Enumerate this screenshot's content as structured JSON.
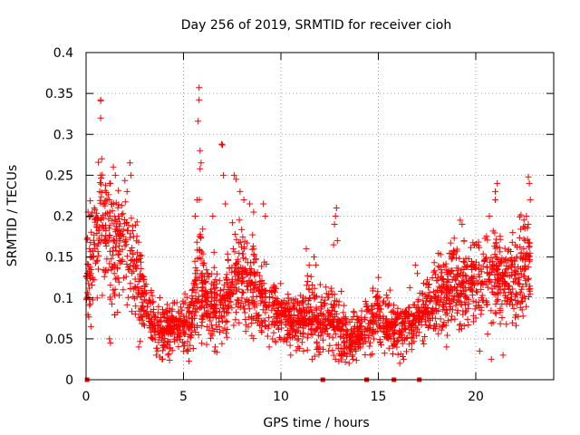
{
  "chart_data": {
    "type": "scatter",
    "title": "Day 256 of 2019, SRMTID for receiver cioh",
    "xlabel": "GPS time / hours",
    "ylabel": "SRMTID / TECUs",
    "xlim": [
      0,
      24
    ],
    "ylim": [
      0,
      0.4
    ],
    "x_ticks": [
      0,
      5,
      10,
      15,
      20
    ],
    "x_tick_labels": [
      "0",
      "5",
      "10",
      "15",
      "20"
    ],
    "y_ticks": [
      0,
      0.05,
      0.1,
      0.15,
      0.2,
      0.25,
      0.3,
      0.35,
      0.4
    ],
    "y_tick_labels": [
      "0",
      "0.05",
      "0.1",
      "0.15",
      "0.2",
      "0.25",
      "0.3",
      "0.35",
      "0.4"
    ],
    "grid": true,
    "marker": "+",
    "color": "#ff0000",
    "zero_markers_x": [
      0.05,
      12.15,
      14.4,
      15.8,
      17.1
    ],
    "series": [
      {
        "name": "SRMTID",
        "profile": [
          [
            0.0,
            0.13,
            0.04
          ],
          [
            0.5,
            0.16,
            0.05
          ],
          [
            0.8,
            0.19,
            0.05
          ],
          [
            1.2,
            0.17,
            0.05
          ],
          [
            1.6,
            0.16,
            0.05
          ],
          [
            2.0,
            0.18,
            0.05
          ],
          [
            2.5,
            0.14,
            0.04
          ],
          [
            3.0,
            0.1,
            0.03
          ],
          [
            3.5,
            0.065,
            0.02
          ],
          [
            4.0,
            0.06,
            0.02
          ],
          [
            4.5,
            0.065,
            0.02
          ],
          [
            5.0,
            0.065,
            0.02
          ],
          [
            5.5,
            0.08,
            0.03
          ],
          [
            5.8,
            0.14,
            0.05
          ],
          [
            6.2,
            0.09,
            0.03
          ],
          [
            7.0,
            0.09,
            0.03
          ],
          [
            7.5,
            0.12,
            0.04
          ],
          [
            8.0,
            0.13,
            0.04
          ],
          [
            8.5,
            0.12,
            0.04
          ],
          [
            9.0,
            0.1,
            0.03
          ],
          [
            9.5,
            0.09,
            0.025
          ],
          [
            10.0,
            0.075,
            0.02
          ],
          [
            11.0,
            0.07,
            0.02
          ],
          [
            11.5,
            0.08,
            0.025
          ],
          [
            12.0,
            0.07,
            0.025
          ],
          [
            12.5,
            0.08,
            0.025
          ],
          [
            13.0,
            0.06,
            0.025
          ],
          [
            13.5,
            0.05,
            0.02
          ],
          [
            14.0,
            0.055,
            0.02
          ],
          [
            14.5,
            0.07,
            0.02
          ],
          [
            15.0,
            0.08,
            0.025
          ],
          [
            15.5,
            0.07,
            0.02
          ],
          [
            16.0,
            0.055,
            0.02
          ],
          [
            16.5,
            0.07,
            0.02
          ],
          [
            17.0,
            0.075,
            0.02
          ],
          [
            17.5,
            0.09,
            0.025
          ],
          [
            18.0,
            0.1,
            0.03
          ],
          [
            18.5,
            0.11,
            0.03
          ],
          [
            19.0,
            0.12,
            0.035
          ],
          [
            19.5,
            0.11,
            0.03
          ],
          [
            20.0,
            0.12,
            0.035
          ],
          [
            20.5,
            0.13,
            0.04
          ],
          [
            21.0,
            0.13,
            0.04
          ],
          [
            21.5,
            0.12,
            0.035
          ],
          [
            22.0,
            0.12,
            0.04
          ],
          [
            22.5,
            0.14,
            0.04
          ],
          [
            22.8,
            0.14,
            0.04
          ]
        ],
        "spikes": [
          [
            0.75,
            0.342
          ],
          [
            0.75,
            0.341
          ],
          [
            0.75,
            0.32
          ],
          [
            0.8,
            0.27
          ],
          [
            0.75,
            0.25
          ],
          [
            0.7,
            0.23
          ],
          [
            1.4,
            0.26
          ],
          [
            1.5,
            0.25
          ],
          [
            1.2,
            0.22
          ],
          [
            2.25,
            0.265
          ],
          [
            2.3,
            0.25
          ],
          [
            2.1,
            0.23
          ],
          [
            5.8,
            0.357
          ],
          [
            5.8,
            0.342
          ],
          [
            5.75,
            0.316
          ],
          [
            5.85,
            0.28
          ],
          [
            5.9,
            0.265
          ],
          [
            5.85,
            0.258
          ],
          [
            5.7,
            0.22
          ],
          [
            5.6,
            0.2
          ],
          [
            6.95,
            0.288
          ],
          [
            7.0,
            0.287
          ],
          [
            7.05,
            0.25
          ],
          [
            7.15,
            0.215
          ],
          [
            6.5,
            0.2
          ],
          [
            7.6,
            0.25
          ],
          [
            7.7,
            0.245
          ],
          [
            7.9,
            0.23
          ],
          [
            8.1,
            0.22
          ],
          [
            8.4,
            0.215
          ],
          [
            8.6,
            0.205
          ],
          [
            9.1,
            0.215
          ],
          [
            9.2,
            0.2
          ],
          [
            11.3,
            0.16
          ],
          [
            11.45,
            0.14
          ],
          [
            12.85,
            0.21
          ],
          [
            12.8,
            0.2
          ],
          [
            12.75,
            0.19
          ],
          [
            12.9,
            0.17
          ],
          [
            12.7,
            0.165
          ],
          [
            11.7,
            0.15
          ],
          [
            11.8,
            0.14
          ],
          [
            16.9,
            0.14
          ],
          [
            17.0,
            0.13
          ],
          [
            19.2,
            0.195
          ],
          [
            19.3,
            0.19
          ],
          [
            19.4,
            0.17
          ],
          [
            21.0,
            0.22
          ],
          [
            21.1,
            0.24
          ],
          [
            21.0,
            0.23
          ],
          [
            20.7,
            0.2
          ],
          [
            22.7,
            0.248
          ],
          [
            22.75,
            0.24
          ],
          [
            22.8,
            0.22
          ],
          [
            22.6,
            0.2
          ],
          [
            22.7,
            0.19
          ],
          [
            21.9,
            0.18
          ],
          [
            0.1,
            0.205
          ],
          [
            0.2,
            0.2
          ]
        ],
        "troughs": [
          [
            1.2,
            0.05
          ],
          [
            1.25,
            0.045
          ],
          [
            2.7,
            0.04
          ],
          [
            3.6,
            0.03
          ],
          [
            3.9,
            0.025
          ],
          [
            4.2,
            0.03
          ],
          [
            6.6,
            0.035
          ],
          [
            9.4,
            0.04
          ],
          [
            10.5,
            0.03
          ],
          [
            11.6,
            0.025
          ],
          [
            12.8,
            0.025
          ],
          [
            13.5,
            0.02
          ],
          [
            13.7,
            0.025
          ],
          [
            14.6,
            0.03
          ],
          [
            16.1,
            0.02
          ],
          [
            16.3,
            0.025
          ],
          [
            18.5,
            0.04
          ],
          [
            20.2,
            0.035
          ],
          [
            20.8,
            0.025
          ],
          [
            21.4,
            0.03
          ]
        ]
      }
    ]
  }
}
